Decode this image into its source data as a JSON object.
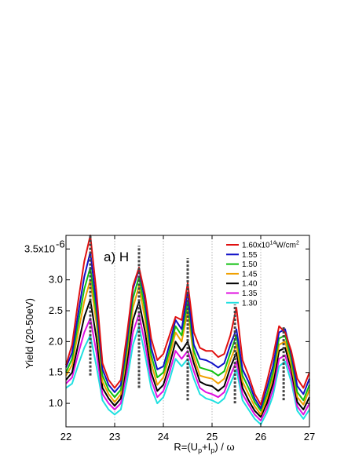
{
  "chart_data": {
    "type": "line",
    "panel_label": "a) H",
    "xlabel_parts": {
      "pre": "R=(U",
      "sub1": "p",
      "mid": "+I",
      "sub2": "p",
      "post": ") / ω"
    },
    "ylabel": "Yield (20-50eV)",
    "xlim": [
      22,
      27
    ],
    "ylim": [
      0.62,
      3.72
    ],
    "x_ticks": [
      22,
      23,
      24,
      25,
      26,
      27
    ],
    "x_tick_labels": [
      "22",
      "23",
      "24",
      "25",
      "26",
      "27"
    ],
    "y_ticks": [
      1.0,
      1.5,
      2.0,
      2.5,
      3.0,
      3.5
    ],
    "y_tick_labels": [
      "1.0",
      "1.5",
      "2.0",
      "2.5",
      "3.0",
      "3.5x10"
    ],
    "y_top_exponent": "-6",
    "x_grid": true,
    "legend_position": "top-right",
    "legend_first": {
      "mantissa": "1.60x10",
      "exp": "14",
      "unit": "W/cm",
      "unit_exp": "2"
    },
    "x": [
      22.0,
      22.125,
      22.25,
      22.375,
      22.5,
      22.625,
      22.75,
      22.875,
      23.0,
      23.125,
      23.25,
      23.375,
      23.5,
      23.625,
      23.75,
      23.875,
      24.0,
      24.125,
      24.25,
      24.375,
      24.5,
      24.625,
      24.75,
      24.875,
      25.0,
      25.125,
      25.25,
      25.375,
      25.5,
      25.625,
      25.75,
      25.875,
      26.0,
      26.125,
      26.25,
      26.375,
      26.5,
      26.625,
      26.75,
      26.875,
      27.0
    ],
    "series": [
      {
        "name": "1.60x10^14 W/cm^2",
        "color": "#e01010",
        "values": [
          1.62,
          1.95,
          2.65,
          3.3,
          3.72,
          2.8,
          1.65,
          1.38,
          1.25,
          1.38,
          2.1,
          2.9,
          3.2,
          2.75,
          2.05,
          1.7,
          1.8,
          2.1,
          2.4,
          2.35,
          2.95,
          2.15,
          1.9,
          1.85,
          1.85,
          1.75,
          1.8,
          2.1,
          2.55,
          1.7,
          1.45,
          1.15,
          0.98,
          1.35,
          1.75,
          2.25,
          2.15,
          1.85,
          1.4,
          1.25,
          1.5
        ]
      },
      {
        "name": "1.55",
        "color": "#1010c8",
        "values": [
          1.58,
          1.82,
          2.45,
          3.05,
          3.45,
          2.6,
          1.55,
          1.3,
          1.18,
          1.3,
          2.0,
          2.85,
          3.18,
          2.65,
          1.9,
          1.55,
          1.6,
          1.95,
          2.35,
          2.2,
          2.8,
          1.95,
          1.72,
          1.7,
          1.65,
          1.58,
          1.65,
          1.95,
          2.2,
          1.55,
          1.35,
          1.08,
          0.92,
          1.25,
          1.6,
          2.15,
          2.2,
          1.8,
          1.28,
          1.15,
          1.4
        ]
      },
      {
        "name": "1.50",
        "color": "#10c010",
        "values": [
          1.5,
          1.72,
          2.3,
          2.85,
          3.2,
          2.45,
          1.45,
          1.22,
          1.1,
          1.22,
          1.88,
          2.7,
          3.05,
          2.5,
          1.78,
          1.42,
          1.5,
          1.85,
          2.25,
          2.1,
          2.65,
          1.85,
          1.58,
          1.55,
          1.52,
          1.45,
          1.52,
          1.82,
          2.1,
          1.45,
          1.25,
          1.02,
          0.88,
          1.15,
          1.5,
          2.05,
          2.1,
          1.72,
          1.18,
          1.05,
          1.3
        ]
      },
      {
        "name": "1.45",
        "color": "#f0a000",
        "values": [
          1.45,
          1.62,
          2.15,
          2.65,
          3.0,
          2.3,
          1.35,
          1.15,
          1.02,
          1.15,
          1.78,
          2.55,
          2.9,
          2.35,
          1.65,
          1.3,
          1.42,
          1.75,
          2.15,
          2.0,
          2.5,
          1.75,
          1.45,
          1.42,
          1.4,
          1.32,
          1.4,
          1.7,
          1.95,
          1.35,
          1.15,
          0.95,
          0.82,
          1.08,
          1.42,
          1.95,
          2.0,
          1.62,
          1.1,
          0.98,
          1.22
        ]
      },
      {
        "name": "1.40",
        "color": "#000000",
        "values": [
          1.38,
          1.5,
          1.95,
          2.4,
          2.68,
          2.05,
          1.25,
          1.08,
          0.96,
          1.08,
          1.65,
          2.35,
          2.65,
          2.15,
          1.5,
          1.2,
          1.3,
          1.62,
          2.0,
          1.85,
          2.0,
          1.65,
          1.35,
          1.3,
          1.28,
          1.2,
          1.28,
          1.58,
          1.82,
          1.25,
          1.05,
          0.88,
          0.78,
          1.0,
          1.32,
          1.85,
          1.9,
          1.55,
          1.02,
          0.9,
          1.1
        ]
      },
      {
        "name": "1.35",
        "color": "#e010e0",
        "values": [
          1.32,
          1.42,
          1.8,
          2.15,
          2.38,
          1.82,
          1.15,
          1.0,
          0.9,
          1.0,
          1.5,
          2.15,
          2.45,
          1.95,
          1.38,
          1.1,
          1.2,
          1.5,
          1.85,
          1.72,
          1.85,
          1.52,
          1.25,
          1.18,
          1.15,
          1.1,
          1.18,
          1.45,
          1.68,
          1.15,
          0.98,
          0.82,
          0.72,
          0.92,
          1.22,
          1.72,
          1.78,
          1.45,
          0.95,
          0.82,
          1.0
        ]
      },
      {
        "name": "1.30",
        "color": "#20e0e0",
        "values": [
          1.25,
          1.32,
          1.62,
          1.9,
          2.1,
          1.6,
          1.05,
          0.9,
          0.82,
          0.9,
          1.35,
          1.95,
          2.25,
          1.78,
          1.25,
          1.0,
          1.1,
          1.38,
          1.72,
          1.6,
          1.72,
          1.4,
          1.15,
          1.08,
          1.05,
          1.0,
          1.08,
          1.32,
          1.55,
          1.05,
          0.9,
          0.75,
          0.66,
          0.85,
          1.12,
          1.6,
          1.68,
          1.35,
          0.88,
          0.75,
          0.9
        ]
      }
    ],
    "markers": [
      {
        "x": 22.5,
        "y_bottom": 1.45,
        "y_top": 3.72
      },
      {
        "x": 23.5,
        "y_bottom": 1.25,
        "y_top": 3.55
      },
      {
        "x": 24.5,
        "y_bottom": 1.05,
        "y_top": 3.35
      },
      {
        "x": 25.47,
        "y_bottom": 1.0,
        "y_top": 2.6
      },
      {
        "x": 26.47,
        "y_bottom": 1.05,
        "y_top": 2.25
      }
    ]
  }
}
